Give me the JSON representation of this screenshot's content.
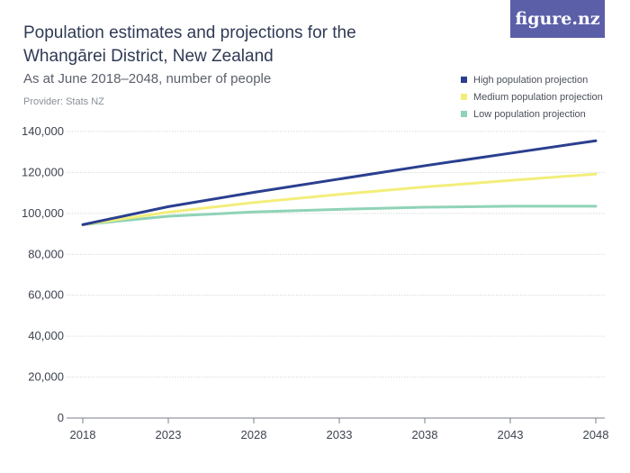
{
  "brand": {
    "logo_text": "figure.nz"
  },
  "provider": "Provider: Stats NZ",
  "colors": {
    "high": "#2a3f8f",
    "medium": "#f2ee7a",
    "low": "#8fd3b6",
    "grid": "#d9d9d9",
    "brand": "#5b5fa8"
  },
  "chart_data": {
    "type": "line",
    "title": "Population estimates and projections for the Whangārei District, New Zealand",
    "subtitle": "As at June 2018–2048, number of people",
    "x": [
      2018,
      2023,
      2028,
      2033,
      2038,
      2043,
      2048
    ],
    "x_tick_labels": [
      "2018",
      "2023",
      "2028",
      "2033",
      "2038",
      "2043",
      "2048"
    ],
    "ylim": [
      0,
      140000
    ],
    "y_ticks": [
      0,
      20000,
      40000,
      60000,
      80000,
      100000,
      120000,
      140000
    ],
    "y_tick_labels": [
      "0",
      "20,000",
      "40,000",
      "60,000",
      "80,000",
      "100,000",
      "120,000",
      "140,000"
    ],
    "grid": true,
    "legend_position": "top-right",
    "series": [
      {
        "name": "High population projection",
        "color": "#2a3f8f",
        "values": [
          94500,
          103300,
          110300,
          116800,
          123300,
          129400,
          135500
        ]
      },
      {
        "name": "Medium population projection",
        "color": "#f2ee7a",
        "values": [
          94500,
          100600,
          105300,
          109300,
          112900,
          116100,
          119200
        ]
      },
      {
        "name": "Low population projection",
        "color": "#8fd3b6",
        "values": [
          94500,
          98600,
          100700,
          102000,
          103000,
          103500,
          103500
        ]
      }
    ]
  }
}
